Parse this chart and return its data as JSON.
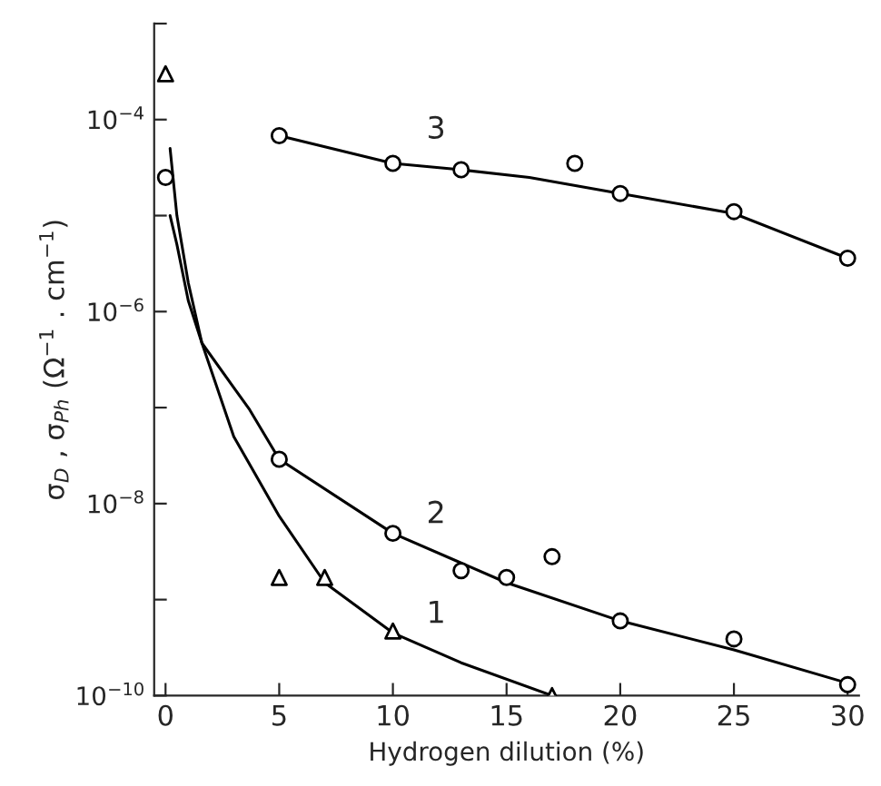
{
  "chart_data": {
    "type": "scatter",
    "xlabel": "Hydrogen dilution (%)",
    "ylabel": "σ$_{D}$ , σ$_{Ph}$ (Ω$^{−1}$ . cm$^{−1}$)",
    "log": "y",
    "xlim": [
      -0.5,
      30.5
    ],
    "xticks": [
      0,
      5,
      10,
      15,
      20,
      25,
      30
    ],
    "ylim": [
      1e-10,
      0.001
    ],
    "yticks": [
      {
        "value": 1e-10,
        "label": "10$^{−10}$"
      },
      {
        "value": 1e-09,
        "label": null
      },
      {
        "value": 1e-08,
        "label": "10$^{−8}$"
      },
      {
        "value": 1e-07,
        "label": null
      },
      {
        "value": 1e-06,
        "label": "10$^{−6}$"
      },
      {
        "value": 1e-05,
        "label": null
      },
      {
        "value": 0.0001,
        "label": "10$^{−4}$"
      },
      {
        "value": 0.001,
        "label": null
      }
    ],
    "series": [
      {
        "marker": "triangle",
        "color": "#000000",
        "x": [
          0,
          5,
          7,
          10,
          17
        ],
        "values": [
          0.0003,
          1.7e-09,
          1.7e-09,
          4.7e-10,
          1e-10
        ]
      },
      {
        "marker": "circle",
        "color": "#000000",
        "x": [
          0,
          5,
          10,
          13,
          15,
          17,
          20,
          25,
          30
        ],
        "values": [
          2.5e-05,
          2.9e-08,
          4.9e-09,
          2e-09,
          1.7e-09,
          2.8e-09,
          6e-10,
          3.9e-10,
          1.3e-10
        ]
      },
      {
        "marker": "circle",
        "color": "#000000",
        "x": [
          5,
          10,
          13,
          18,
          20,
          25,
          30
        ],
        "values": [
          6.8e-05,
          3.5e-05,
          3e-05,
          3.5e-05,
          1.7e-05,
          1.1e-05,
          3.6e-06
        ]
      },
      {
        "type": "line",
        "color": "#000000",
        "x": [
          0.2,
          0.5,
          1,
          1.6,
          3,
          5,
          7,
          10,
          13,
          17
        ],
        "values": [
          5e-05,
          1e-05,
          2e-06,
          4.7e-07,
          5e-08,
          7.4e-09,
          1.5e-09,
          4.5e-10,
          2.2e-10,
          1e-10
        ]
      },
      {
        "type": "line",
        "color": "#000000",
        "x": [
          0.2,
          0.5,
          1,
          1.6,
          3.7,
          5,
          10,
          15,
          20,
          25,
          30
        ],
        "values": [
          1e-05,
          5e-06,
          1.3e-06,
          4.7e-07,
          9.5e-08,
          2.9e-08,
          4.9e-09,
          1.5e-09,
          6e-10,
          3e-10,
          1.35e-10
        ]
      },
      {
        "type": "line",
        "color": "#000000",
        "x": [
          5,
          10,
          13,
          16,
          20,
          25,
          30
        ],
        "values": [
          6.8e-05,
          3.5e-05,
          3e-05,
          2.5e-05,
          1.7e-05,
          1.05e-05,
          3.6e-06
        ]
      }
    ],
    "annotations": [
      "1",
      "2",
      "3"
    ]
  }
}
